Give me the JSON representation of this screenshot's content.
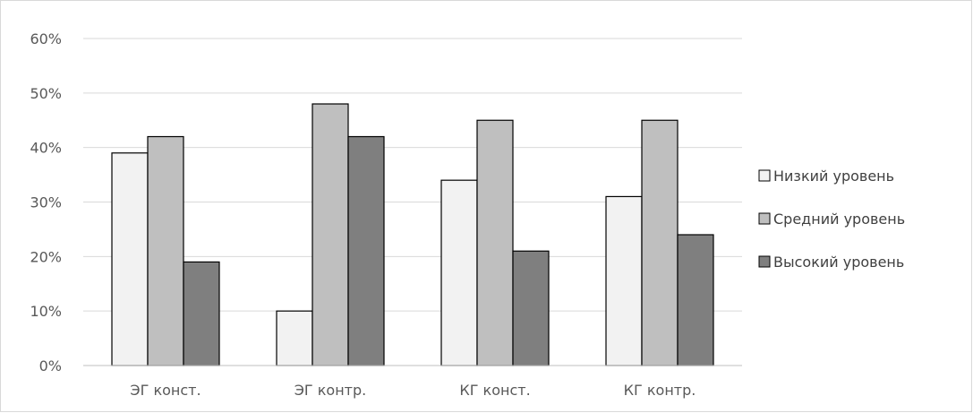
{
  "chart_data": {
    "type": "bar",
    "categories": [
      "ЭГ конст.",
      "ЭГ контр.",
      "КГ конст.",
      "КГ контр."
    ],
    "series": [
      {
        "name": "Низкий уровень",
        "values": [
          39,
          10,
          34,
          31
        ],
        "color": "#f2f2f2"
      },
      {
        "name": "Средний уровень",
        "values": [
          42,
          48,
          45,
          45
        ],
        "color": "#bfbfbf"
      },
      {
        "name": "Высокий уровень",
        "values": [
          19,
          42,
          21,
          24
        ],
        "color": "#7f7f7f"
      }
    ],
    "y_ticks": [
      "0%",
      "10%",
      "20%",
      "30%",
      "40%",
      "50%",
      "60%"
    ],
    "y_tick_values": [
      0,
      10,
      20,
      30,
      40,
      50,
      60
    ],
    "ylim": [
      0,
      60
    ],
    "y_unit": "%",
    "grid": true,
    "legend_position": "right",
    "title": "",
    "xlabel": "",
    "ylabel": ""
  }
}
